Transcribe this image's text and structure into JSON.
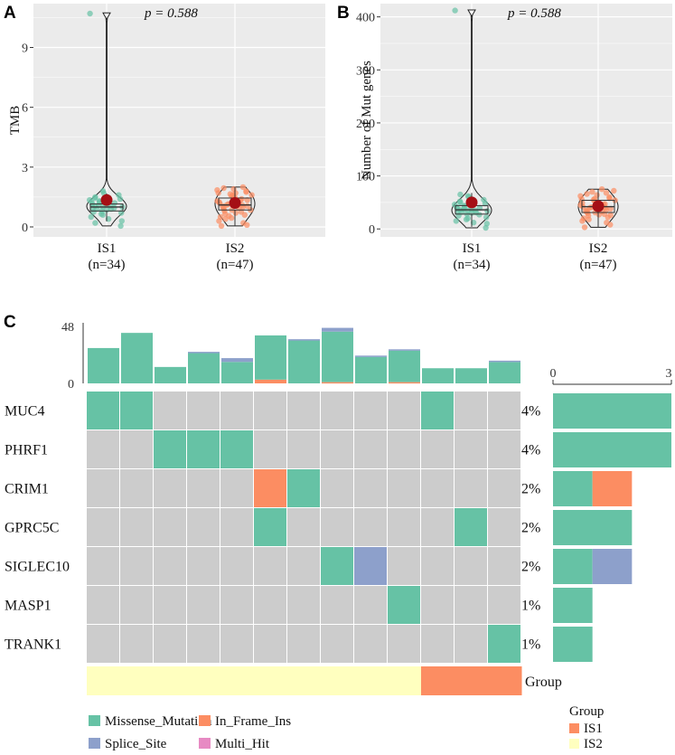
{
  "chart_data": [
    {
      "panel": "A",
      "type": "violin",
      "ylabel": "TMB",
      "ylim": [
        -0.5,
        11.2
      ],
      "yticks": [
        0,
        3,
        6,
        9
      ],
      "annotation": "p = 0.588",
      "categories": [
        "IS1",
        "IS2"
      ],
      "category_counts": [
        "(n=34)",
        "(n=47)"
      ],
      "colors": [
        "#66C2A5",
        "#FC8D62"
      ],
      "means": [
        1.35,
        1.2
      ],
      "medians": [
        1.0,
        1.1
      ],
      "q1": [
        0.8,
        0.85
      ],
      "q3": [
        1.15,
        1.45
      ],
      "max": [
        10.6,
        2.0
      ],
      "min": [
        0.05,
        0.05
      ],
      "points": [
        [
          0.05,
          0.3,
          0.5,
          0.6,
          0.7,
          0.75,
          0.8,
          0.85,
          0.9,
          0.9,
          0.95,
          1.0,
          1.0,
          1.05,
          1.1,
          1.1,
          1.15,
          1.2,
          1.25,
          1.3,
          1.35,
          1.4,
          1.5,
          1.6,
          1.7,
          0.2,
          0.4,
          0.65,
          0.95,
          1.05,
          1.25,
          1.45,
          1.8,
          10.7
        ],
        [
          0.05,
          0.1,
          0.2,
          0.3,
          0.4,
          0.5,
          0.6,
          0.65,
          0.7,
          0.75,
          0.8,
          0.85,
          0.9,
          0.95,
          1.0,
          1.0,
          1.05,
          1.1,
          1.1,
          1.15,
          1.2,
          1.2,
          1.25,
          1.3,
          1.35,
          1.4,
          1.45,
          1.5,
          1.55,
          1.6,
          1.65,
          1.7,
          1.75,
          1.8,
          1.85,
          1.9,
          1.95,
          2.0,
          0.55,
          0.85,
          1.15,
          1.35,
          1.6,
          1.25,
          0.45,
          1.05,
          1.7
        ]
      ]
    },
    {
      "panel": "B",
      "type": "violin",
      "ylabel": "Number of Mut genes",
      "ylim": [
        -15,
        425
      ],
      "yticks": [
        0,
        100,
        200,
        300,
        400
      ],
      "annotation": "p = 0.588",
      "categories": [
        "IS1",
        "IS2"
      ],
      "category_counts": [
        "(n=34)",
        "(n=47)"
      ],
      "colors": [
        "#66C2A5",
        "#FC8D62"
      ],
      "means": [
        50,
        43
      ],
      "medians": [
        36,
        42
      ],
      "q1": [
        28,
        31
      ],
      "q3": [
        44,
        54
      ],
      "max": [
        408,
        75
      ],
      "min": [
        2,
        3
      ],
      "points": [
        [
          2,
          10,
          15,
          20,
          22,
          25,
          28,
          30,
          31,
          32,
          33,
          34,
          35,
          36,
          36,
          37,
          38,
          40,
          42,
          44,
          46,
          48,
          50,
          55,
          60,
          65,
          12,
          18,
          27,
          35,
          41,
          52,
          62,
          412
        ],
        [
          3,
          8,
          12,
          15,
          18,
          20,
          22,
          25,
          27,
          28,
          30,
          31,
          32,
          33,
          35,
          36,
          38,
          40,
          40,
          41,
          42,
          43,
          44,
          45,
          46,
          47,
          48,
          50,
          52,
          54,
          55,
          56,
          58,
          60,
          62,
          64,
          66,
          68,
          70,
          72,
          75,
          26,
          39,
          49,
          57,
          34,
          44
        ]
      ]
    },
    {
      "panel": "C",
      "type": "oncoplot",
      "genes": [
        "MUC4",
        "PHRF1",
        "CRIM1",
        "GPRC5C",
        "SIGLEC10",
        "MASP1",
        "TRANK1"
      ],
      "percentages": [
        "4%",
        "4%",
        "2%",
        "2%",
        "2%",
        "1%",
        "1%"
      ],
      "top_axis_max": 48,
      "top_ticks": [
        "48",
        "0"
      ],
      "sample_burden": [
        {
          "missense": 28
        },
        {
          "missense": 40
        },
        {
          "missense": 13
        },
        {
          "missense": 24,
          "splice": 1
        },
        {
          "missense": 17,
          "splice": 3
        },
        {
          "missense": 35,
          "in_frame_ins": 3
        },
        {
          "missense": 34,
          "splice": 1
        },
        {
          "missense": 40,
          "in_frame_ins": 1,
          "splice": 3
        },
        {
          "missense": 21,
          "splice": 1
        },
        {
          "missense": 25,
          "in_frame_ins": 1,
          "splice": 1
        },
        {
          "missense": 12
        },
        {
          "missense": 12
        },
        {
          "missense": 17,
          "splice": 1
        }
      ],
      "matrix": [
        [
          "M",
          "M",
          "",
          "",
          "",
          "",
          "",
          "",
          "",
          "",
          "M",
          "",
          ""
        ],
        [
          "",
          "",
          "M",
          "M",
          "M",
          "",
          "",
          "",
          "",
          "",
          "",
          "",
          ""
        ],
        [
          "",
          "",
          "",
          "",
          "",
          "I",
          "M",
          "",
          "",
          "",
          "",
          "",
          ""
        ],
        [
          "",
          "",
          "",
          "",
          "",
          "M",
          "",
          "",
          "",
          "",
          "",
          "M",
          ""
        ],
        [
          "",
          "",
          "",
          "",
          "",
          "",
          "",
          "M",
          "S",
          "",
          "",
          "",
          ""
        ],
        [
          "",
          "",
          "",
          "",
          "",
          "",
          "",
          "",
          "",
          "M",
          "",
          "",
          ""
        ],
        [
          "",
          "",
          "",
          "",
          "",
          "",
          "",
          "",
          "",
          "",
          "",
          "",
          "M"
        ]
      ],
      "group_row": [
        "IS2",
        "IS2",
        "IS2",
        "IS2",
        "IS2",
        "IS2",
        "IS2",
        "IS2",
        "IS2",
        "IS2",
        "IS1",
        "IS1",
        "IS1"
      ],
      "group_label": "Group",
      "side_axis": {
        "min": 0,
        "max": 3,
        "ticks": [
          "0",
          "3"
        ]
      },
      "side_counts": [
        {
          "missense": 3
        },
        {
          "missense": 3
        },
        {
          "missense": 1,
          "in_frame_ins": 1
        },
        {
          "missense": 2
        },
        {
          "missense": 1,
          "splice": 1
        },
        {
          "missense": 1
        },
        {
          "missense": 1
        }
      ],
      "legend_variants": [
        "Missense_Mutation",
        "In_Frame_Ins",
        "Splice_Site",
        "Multi_Hit"
      ],
      "legend_group_title": "Group",
      "legend_groups": [
        "IS1",
        "IS2"
      ]
    }
  ],
  "colors": {
    "missense": "#66C2A5",
    "in_frame_ins": "#FC8D62",
    "splice": "#8DA0CB",
    "multi_hit": "#E78AC3",
    "is1": "#FC8D62",
    "is2": "#FFFFBF",
    "grey_cell": "#CCCCCC",
    "panel_bg": "#EBEBEB",
    "mean_dot": "#A50F15"
  },
  "panels": {
    "a": "A",
    "b": "B",
    "c": "C"
  }
}
